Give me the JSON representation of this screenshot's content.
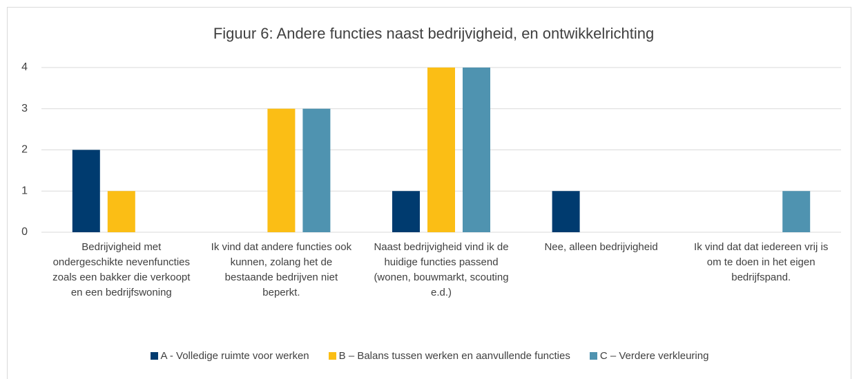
{
  "chart_data": {
    "type": "bar",
    "title": "Figuur 6: Andere functies naast bedrijvigheid, en ontwikkelrichting",
    "categories": [
      "Bedrijvigheid met ondergeschikte nevenfuncties zoals een bakker die verkoopt en een bedrijfswoning",
      "Ik vind dat andere functies ook kunnen, zolang het de bestaande bedrijven niet beperkt.",
      "Naast bedrijvigheid vind ik de huidige functies passend (wonen, bouwmarkt, scouting e.d.)",
      "Nee, alleen bedrijvigheid",
      "Ik vind dat dat iedereen vrij is om te doen in het eigen bedrijfspand."
    ],
    "series": [
      {
        "name": "A - Volledige ruimte voor werken",
        "color": "#003b6f",
        "values": [
          2,
          0,
          1,
          1,
          0
        ]
      },
      {
        "name": "B – Balans tussen werken en aanvullende functies",
        "color": "#fbbe15",
        "values": [
          1,
          3,
          4,
          0,
          0
        ]
      },
      {
        "name": "C – Verdere verkleuring",
        "color": "#4f93b0",
        "values": [
          0,
          3,
          4,
          0,
          1
        ]
      }
    ],
    "ylim": [
      0,
      4
    ],
    "yticks": [
      0,
      1,
      2,
      3,
      4
    ],
    "grid": true,
    "legend": "bottom"
  }
}
